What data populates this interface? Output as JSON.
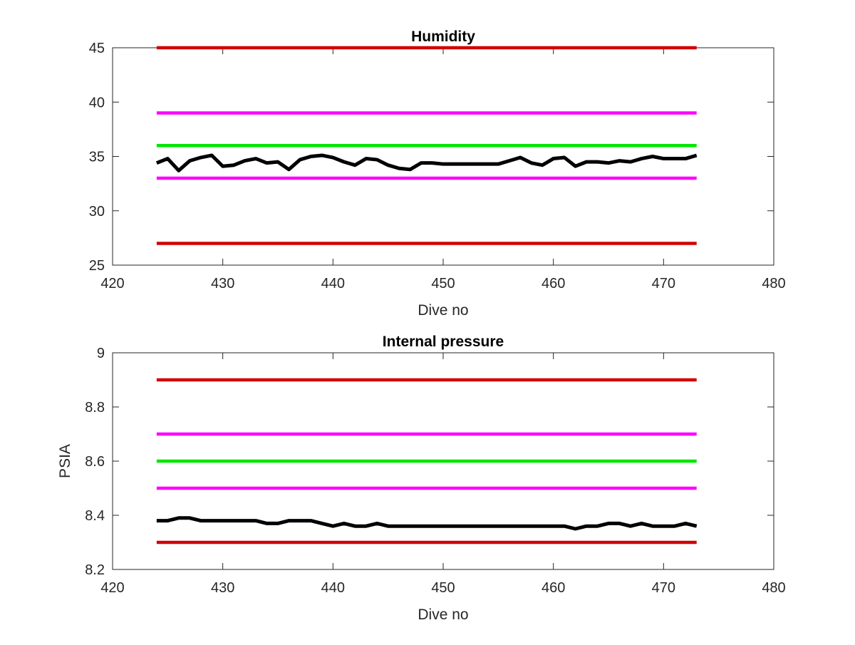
{
  "chart_data": [
    {
      "type": "line",
      "title": "Humidity",
      "xlabel": "Dive no",
      "ylabel": "",
      "xlim": [
        420,
        480
      ],
      "ylim": [
        25,
        45
      ],
      "xticks": [
        420,
        430,
        440,
        450,
        460,
        470,
        480
      ],
      "yticks": [
        25,
        30,
        35,
        40,
        45
      ],
      "grid": false,
      "series": [
        {
          "color": "#d00000",
          "x": [
            424,
            473
          ],
          "y": [
            45,
            45
          ]
        },
        {
          "color": "#ff00ff",
          "x": [
            424,
            473
          ],
          "y": [
            39,
            39
          ]
        },
        {
          "color": "#00e600",
          "x": [
            424,
            473
          ],
          "y": [
            36,
            36
          ]
        },
        {
          "color": "#ff00ff",
          "x": [
            424,
            473
          ],
          "y": [
            33,
            33
          ]
        },
        {
          "color": "#d00000",
          "x": [
            424,
            473
          ],
          "y": [
            27,
            27
          ]
        },
        {
          "color": "#000000",
          "x": [
            424,
            425,
            426,
            427,
            428,
            429,
            430,
            431,
            432,
            433,
            434,
            435,
            436,
            437,
            438,
            439,
            440,
            441,
            442,
            443,
            444,
            445,
            446,
            447,
            448,
            449,
            450,
            451,
            452,
            453,
            454,
            455,
            456,
            457,
            458,
            459,
            460,
            461,
            462,
            463,
            464,
            465,
            466,
            467,
            468,
            469,
            470,
            471,
            472,
            473
          ],
          "y": [
            34.4,
            34.8,
            33.7,
            34.6,
            34.9,
            35.1,
            34.1,
            34.2,
            34.6,
            34.8,
            34.4,
            34.5,
            33.8,
            34.7,
            35.0,
            35.1,
            34.9,
            34.5,
            34.2,
            34.8,
            34.7,
            34.2,
            33.9,
            33.8,
            34.4,
            34.4,
            34.3,
            34.3,
            34.3,
            34.3,
            34.3,
            34.3,
            34.6,
            34.9,
            34.4,
            34.2,
            34.8,
            34.9,
            34.1,
            34.5,
            34.5,
            34.4,
            34.6,
            34.5,
            34.8,
            35.0,
            34.8,
            34.8,
            34.8,
            35.1
          ]
        }
      ]
    },
    {
      "type": "line",
      "title": "Internal pressure",
      "xlabel": "Dive no",
      "ylabel": "PSIA",
      "xlim": [
        420,
        480
      ],
      "ylim": [
        8.2,
        9.0
      ],
      "xticks": [
        420,
        430,
        440,
        450,
        460,
        470,
        480
      ],
      "yticks": [
        8.2,
        8.4,
        8.6,
        8.8,
        9.0
      ],
      "ytick_labels": [
        "8.2",
        "8.4",
        "8.6",
        "8.8",
        "9"
      ],
      "grid": false,
      "series": [
        {
          "color": "#d00000",
          "x": [
            424,
            473
          ],
          "y": [
            8.9,
            8.9
          ]
        },
        {
          "color": "#ff00ff",
          "x": [
            424,
            473
          ],
          "y": [
            8.7,
            8.7
          ]
        },
        {
          "color": "#00e600",
          "x": [
            424,
            473
          ],
          "y": [
            8.6,
            8.6
          ]
        },
        {
          "color": "#ff00ff",
          "x": [
            424,
            473
          ],
          "y": [
            8.5,
            8.5
          ]
        },
        {
          "color": "#d00000",
          "x": [
            424,
            473
          ],
          "y": [
            8.3,
            8.3
          ]
        },
        {
          "color": "#000000",
          "x": [
            424,
            425,
            426,
            427,
            428,
            429,
            430,
            431,
            432,
            433,
            434,
            435,
            436,
            437,
            438,
            439,
            440,
            441,
            442,
            443,
            444,
            445,
            446,
            447,
            448,
            449,
            450,
            451,
            452,
            453,
            454,
            455,
            456,
            457,
            458,
            459,
            460,
            461,
            462,
            463,
            464,
            465,
            466,
            467,
            468,
            469,
            470,
            471,
            472,
            473
          ],
          "y": [
            8.38,
            8.38,
            8.39,
            8.39,
            8.38,
            8.38,
            8.38,
            8.38,
            8.38,
            8.38,
            8.37,
            8.37,
            8.38,
            8.38,
            8.38,
            8.37,
            8.36,
            8.37,
            8.36,
            8.36,
            8.37,
            8.36,
            8.36,
            8.36,
            8.36,
            8.36,
            8.36,
            8.36,
            8.36,
            8.36,
            8.36,
            8.36,
            8.36,
            8.36,
            8.36,
            8.36,
            8.36,
            8.36,
            8.35,
            8.36,
            8.36,
            8.37,
            8.37,
            8.36,
            8.37,
            8.36,
            8.36,
            8.36,
            8.37,
            8.36
          ]
        }
      ]
    }
  ]
}
